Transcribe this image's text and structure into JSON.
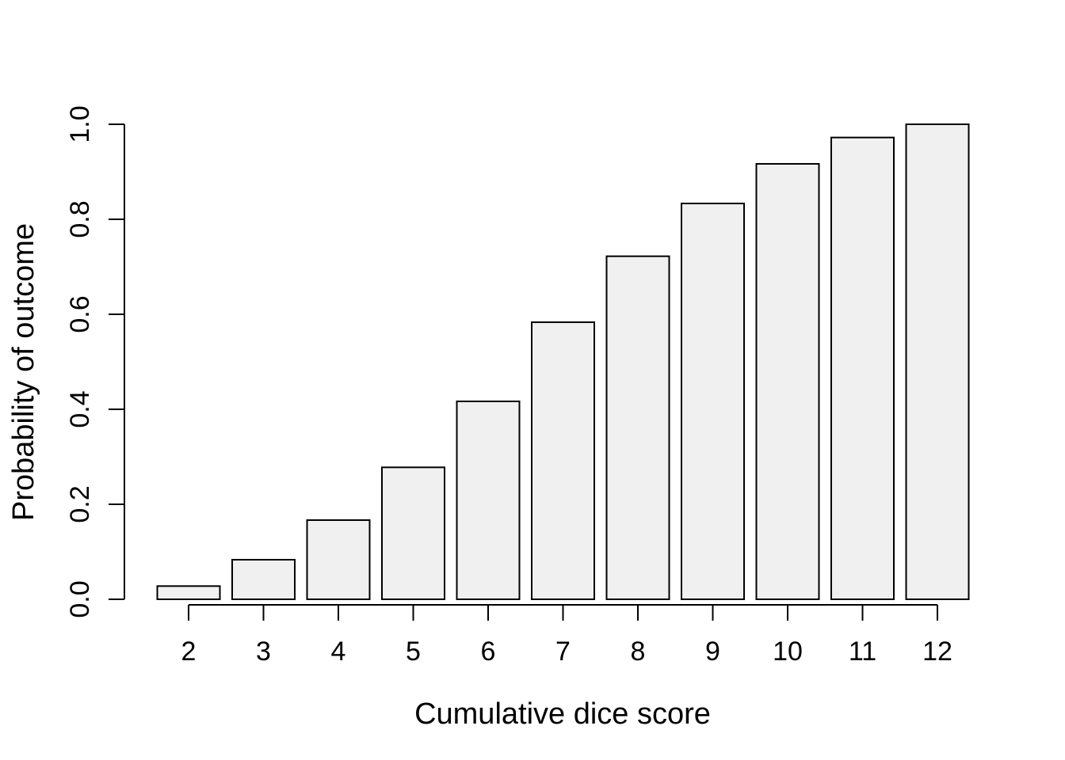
{
  "chart_data": {
    "type": "bar",
    "title": "",
    "xlabel": "Cumulative dice score",
    "ylabel": "Probability of outcome",
    "categories": [
      "2",
      "3",
      "4",
      "5",
      "6",
      "7",
      "8",
      "9",
      "10",
      "11",
      "12"
    ],
    "values": [
      0.0278,
      0.0833,
      0.1667,
      0.2778,
      0.4167,
      0.5833,
      0.7222,
      0.8333,
      0.9167,
      0.9722,
      1.0
    ],
    "y_ticks": [
      {
        "label": "0.0",
        "value": 0.0
      },
      {
        "label": "0.2",
        "value": 0.2
      },
      {
        "label": "0.4",
        "value": 0.4
      },
      {
        "label": "0.6",
        "value": 0.6
      },
      {
        "label": "0.8",
        "value": 0.8
      },
      {
        "label": "1.0",
        "value": 1.0
      }
    ],
    "ylim": [
      0.0,
      1.0
    ],
    "legend": null,
    "grid": false,
    "colors": {
      "bar_fill": "#f0f0f0",
      "bar_stroke": "#000000",
      "axis": "#000000",
      "text": "#000000",
      "background": "#ffffff"
    }
  }
}
